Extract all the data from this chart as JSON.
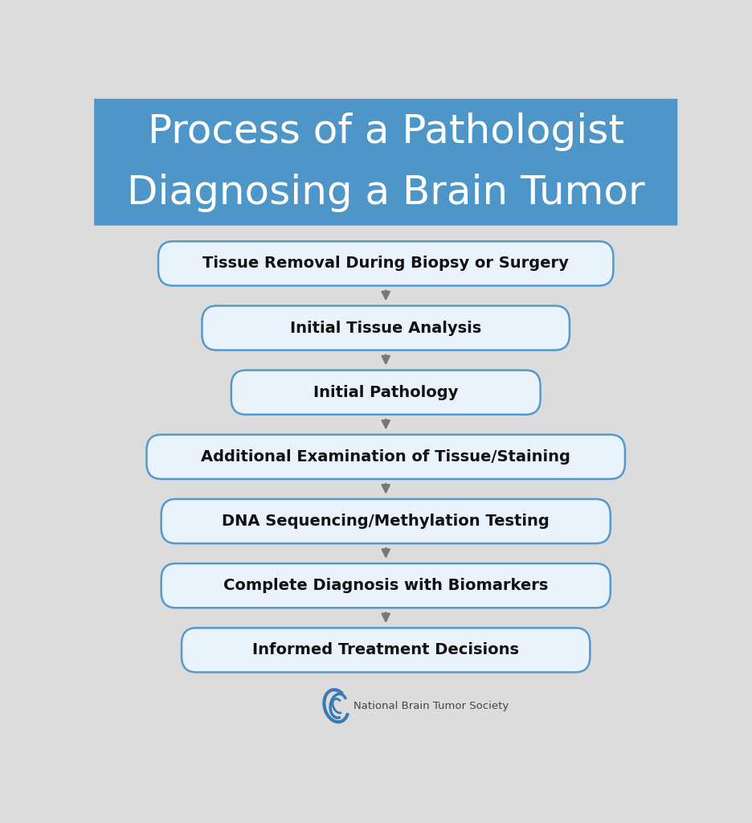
{
  "title_line1": "Process of a Pathologist",
  "title_line2": "Diagnosing a Brain Tumor",
  "title_bg_color": "#4f96c8",
  "title_text_color": "#ffffff",
  "bg_color": "#dcdcdc",
  "box_fill_color": "#eaf3fb",
  "box_edge_color": "#5599cc",
  "box_text_color": "#111111",
  "arrow_color": "#777777",
  "steps": [
    "Tissue Removal During Biopsy or Surgery",
    "Initial Tissue Analysis",
    "Initial Pathology",
    "Additional Examination of Tissue/Staining",
    "DNA Sequencing/Methylation Testing",
    "Complete Diagnosis with Biomarkers",
    "Informed Treatment Decisions"
  ],
  "logo_text": "National Brain Tumor Society",
  "logo_text_color": "#444444",
  "logo_color": "#3a7ab5"
}
